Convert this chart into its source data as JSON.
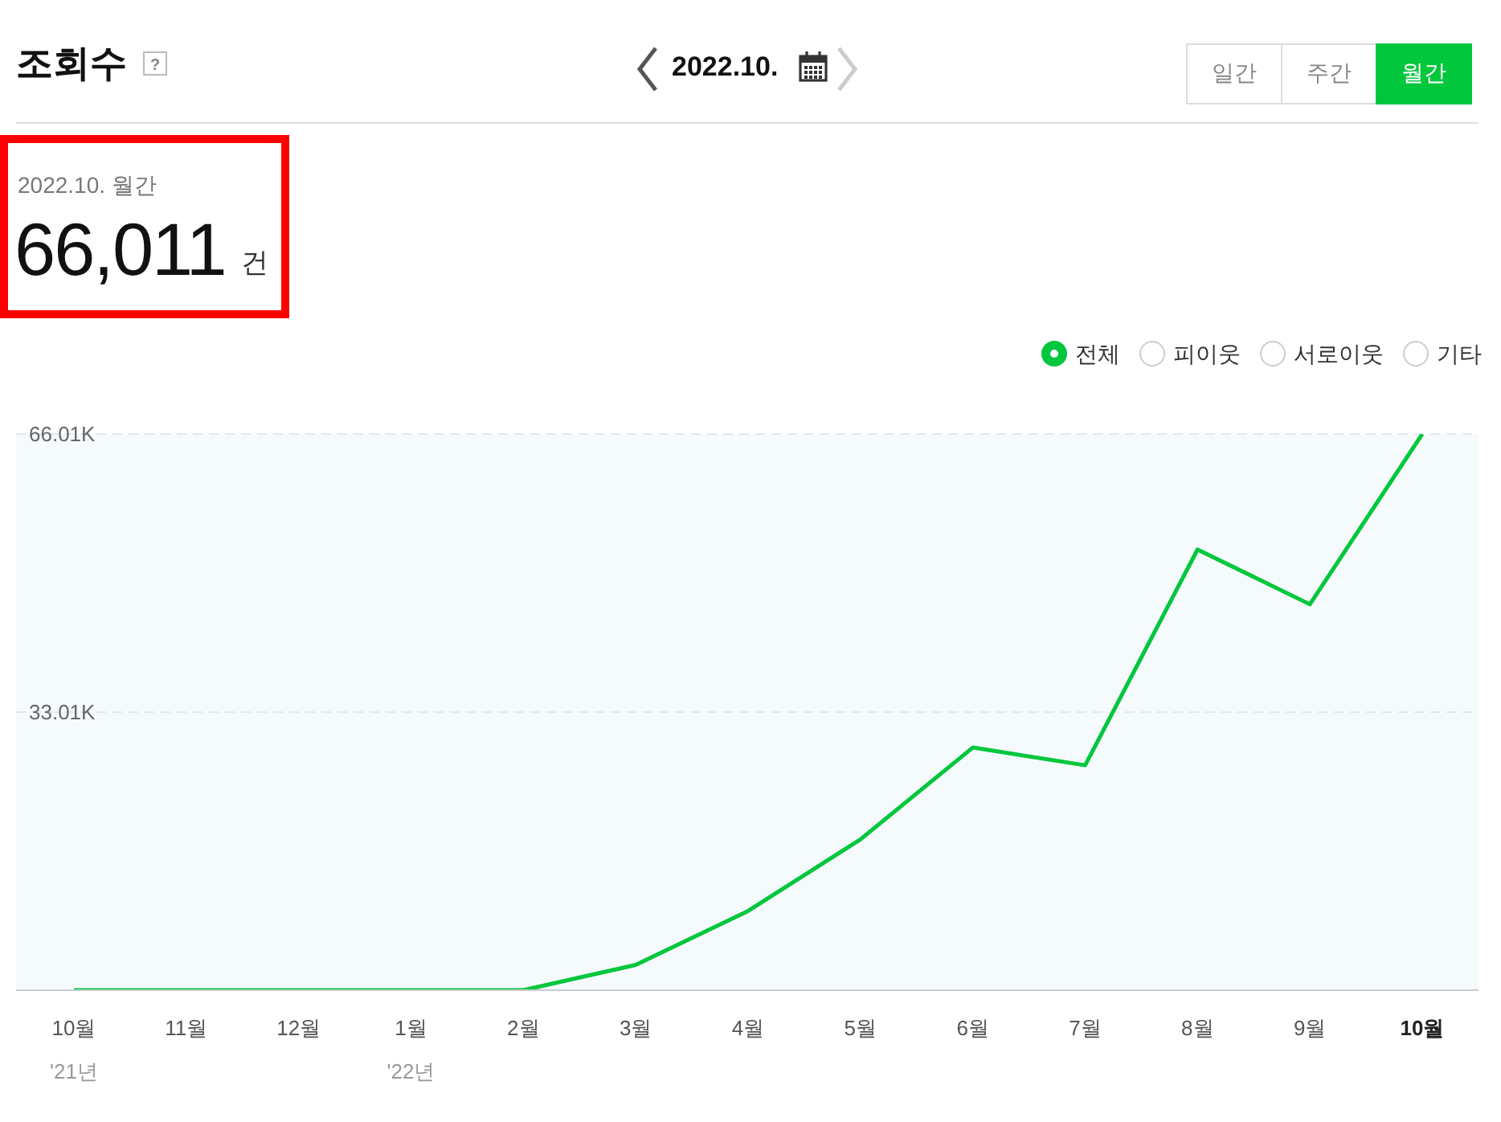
{
  "chart_data": {
    "type": "line",
    "title": "조회수",
    "subtitle": "2022.10.",
    "categories": [
      "10월\n'21년",
      "11월",
      "12월",
      "1월\n'22년",
      "2월",
      "3월",
      "4월",
      "5월",
      "6월",
      "7월",
      "8월",
      "9월",
      "10월"
    ],
    "series": [
      {
        "name": "전체",
        "color": "#00c73c",
        "values": [
          0,
          0,
          0,
          0,
          0,
          3000,
          9400,
          17900,
          28800,
          26700,
          52300,
          45800,
          66011
        ]
      }
    ],
    "ylim": [
      0,
      66011
    ],
    "yticks": [
      {
        "value": 33010,
        "label": "33.01K"
      },
      {
        "value": 66010,
        "label": "66.01K"
      }
    ],
    "grid": "y",
    "legend": "top right",
    "marker": "none",
    "line_style": "solid",
    "annotations": [
      "일간",
      "주간",
      "월간",
      "2022.10. 월간",
      "66,011",
      "건",
      "피이웃",
      "서로이웃",
      "기타",
      "?"
    ]
  }
}
